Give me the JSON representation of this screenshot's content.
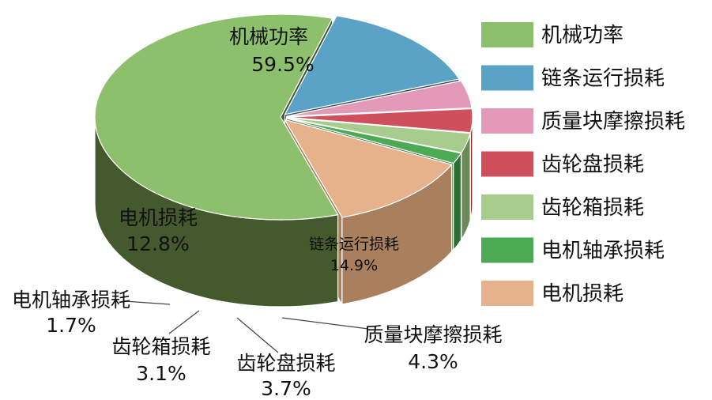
{
  "chart_data": {
    "type": "pie",
    "style": "3d-exploded",
    "slices": [
      {
        "label": "机械功率",
        "value": 59.5,
        "value_label": "59.5%",
        "color": "#8dc06d",
        "side": "#445a2e",
        "explode": 0
      },
      {
        "label": "链条运行损耗",
        "value": 14.9,
        "value_label": "14.9%",
        "color": "#5ba3c6",
        "side": "#37495a",
        "explode": 1
      },
      {
        "label": "质量块摩擦损耗",
        "value": 4.3,
        "value_label": "4.3%",
        "color": "#e39ab8",
        "side": "#a9687f",
        "explode": 1
      },
      {
        "label": "齿轮盘损耗",
        "value": 3.7,
        "value_label": "3.7%",
        "color": "#d04f5d",
        "side": "#8c2f37",
        "explode": 1
      },
      {
        "label": "齿轮箱损耗",
        "value": 3.1,
        "value_label": "3.1%",
        "color": "#a7cc8d",
        "side": "#6b8a57",
        "explode": 1
      },
      {
        "label": "电机轴承损耗",
        "value": 1.7,
        "value_label": "1.7%",
        "color": "#4caa54",
        "side": "#2d6e33",
        "explode": 1
      },
      {
        "label": "电机损耗",
        "value": 12.8,
        "value_label": "12.8%",
        "color": "#e5b28c",
        "side": "#a97f5e",
        "explode": 1
      }
    ],
    "legend": {
      "placement": "right",
      "entries": [
        {
          "label": "机械功率",
          "color": "#8dc06d"
        },
        {
          "label": "链条运行损耗",
          "color": "#5ba3c6"
        },
        {
          "label": "质量块摩擦损耗",
          "color": "#e39ab8"
        },
        {
          "label": "齿轮盘损耗",
          "color": "#d04f5d"
        },
        {
          "label": "齿轮箱损耗",
          "color": "#a7cc8d"
        },
        {
          "label": "电机轴承损耗",
          "color": "#4caa54"
        },
        {
          "label": "电机损耗",
          "color": "#e5b28c"
        }
      ]
    }
  }
}
